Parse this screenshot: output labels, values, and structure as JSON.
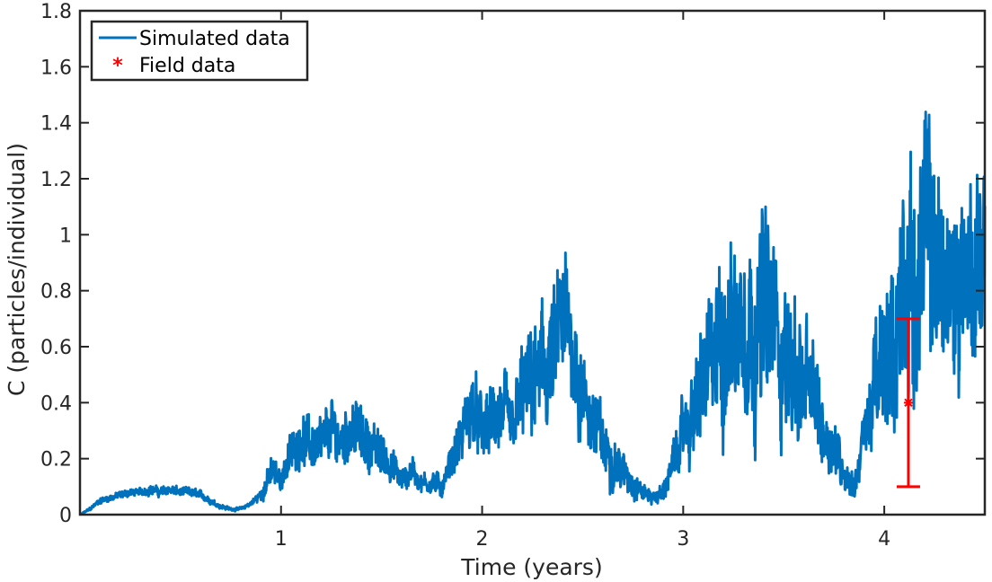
{
  "chart_data": {
    "type": "line",
    "xlabel": "Time (years)",
    "ylabel": "C (particles/individual)",
    "xlim": [
      0,
      4.5
    ],
    "ylim": [
      0,
      1.8
    ],
    "xticks": [
      1,
      2,
      3,
      4
    ],
    "xtick_labels": [
      "1",
      "2",
      "3",
      "4"
    ],
    "yticks": [
      0,
      0.2,
      0.4,
      0.6,
      0.8,
      1,
      1.2,
      1.4,
      1.6,
      1.8
    ],
    "ytick_labels": [
      "0",
      "0.2",
      "0.4",
      "0.6",
      "0.8",
      "1",
      "1.2",
      "1.4",
      "1.6",
      "1.8"
    ],
    "grid": false,
    "legend_position": "top-left",
    "series": [
      {
        "name": "Simulated data",
        "color": "#0072BD",
        "x": [
          0,
          0.05,
          0.1,
          0.15,
          0.2,
          0.25,
          0.3,
          0.35,
          0.4,
          0.45,
          0.5,
          0.55,
          0.6,
          0.65,
          0.7,
          0.75,
          0.8,
          0.85,
          0.9,
          0.95,
          1.0,
          1.05,
          1.1,
          1.15,
          1.2,
          1.25,
          1.3,
          1.35,
          1.4,
          1.45,
          1.5,
          1.55,
          1.6,
          1.65,
          1.7,
          1.75,
          1.8,
          1.85,
          1.9,
          1.95,
          2.0,
          2.05,
          2.1,
          2.15,
          2.2,
          2.25,
          2.3,
          2.35,
          2.4,
          2.45,
          2.5,
          2.55,
          2.6,
          2.65,
          2.7,
          2.75,
          2.8,
          2.85,
          2.9,
          2.95,
          3.0,
          3.05,
          3.1,
          3.15,
          3.2,
          3.25,
          3.3,
          3.35,
          3.4,
          3.45,
          3.5,
          3.55,
          3.6,
          3.65,
          3.7,
          3.75,
          3.8,
          3.85,
          3.9,
          3.95,
          4.0,
          4.05,
          4.1,
          4.15,
          4.2,
          4.25,
          4.3,
          4.35,
          4.4,
          4.45,
          4.5
        ],
        "y": [
          0.0,
          0.02,
          0.05,
          0.06,
          0.07,
          0.08,
          0.08,
          0.09,
          0.08,
          0.09,
          0.08,
          0.08,
          0.07,
          0.05,
          0.03,
          0.02,
          0.02,
          0.04,
          0.07,
          0.15,
          0.13,
          0.22,
          0.28,
          0.25,
          0.24,
          0.3,
          0.26,
          0.32,
          0.28,
          0.24,
          0.22,
          0.18,
          0.12,
          0.16,
          0.11,
          0.12,
          0.1,
          0.2,
          0.28,
          0.38,
          0.3,
          0.33,
          0.36,
          0.3,
          0.43,
          0.46,
          0.5,
          0.55,
          0.68,
          0.63,
          0.4,
          0.35,
          0.25,
          0.2,
          0.15,
          0.12,
          0.08,
          0.06,
          0.08,
          0.18,
          0.3,
          0.35,
          0.48,
          0.55,
          0.62,
          0.68,
          0.72,
          0.64,
          0.72,
          0.7,
          0.56,
          0.52,
          0.45,
          0.42,
          0.3,
          0.25,
          0.15,
          0.1,
          0.28,
          0.45,
          0.55,
          0.6,
          0.88,
          0.78,
          1.0,
          0.95,
          0.82,
          0.78,
          0.9,
          0.85,
          1.0
        ],
        "jitter": [
          0.0,
          0.005,
          0.01,
          0.01,
          0.012,
          0.012,
          0.012,
          0.015,
          0.015,
          0.015,
          0.015,
          0.015,
          0.012,
          0.01,
          0.008,
          0.005,
          0.005,
          0.008,
          0.02,
          0.05,
          0.04,
          0.06,
          0.08,
          0.08,
          0.08,
          0.1,
          0.08,
          0.09,
          0.09,
          0.08,
          0.07,
          0.06,
          0.04,
          0.05,
          0.03,
          0.04,
          0.03,
          0.06,
          0.09,
          0.12,
          0.1,
          0.11,
          0.13,
          0.1,
          0.15,
          0.18,
          0.2,
          0.2,
          0.22,
          0.2,
          0.15,
          0.12,
          0.1,
          0.08,
          0.06,
          0.05,
          0.03,
          0.02,
          0.03,
          0.06,
          0.1,
          0.14,
          0.2,
          0.25,
          0.28,
          0.3,
          0.3,
          0.28,
          0.33,
          0.3,
          0.25,
          0.22,
          0.2,
          0.18,
          0.12,
          0.1,
          0.06,
          0.04,
          0.1,
          0.18,
          0.24,
          0.28,
          0.35,
          0.35,
          0.38,
          0.35,
          0.3,
          0.3,
          0.3,
          0.3,
          0.28
        ]
      },
      {
        "name": "Field data",
        "color": "#FF0000",
        "marker": "asterisk",
        "x": [
          4.12
        ],
        "y": [
          0.4
        ],
        "error_low": [
          0.1
        ],
        "error_high": [
          0.7
        ]
      }
    ]
  }
}
